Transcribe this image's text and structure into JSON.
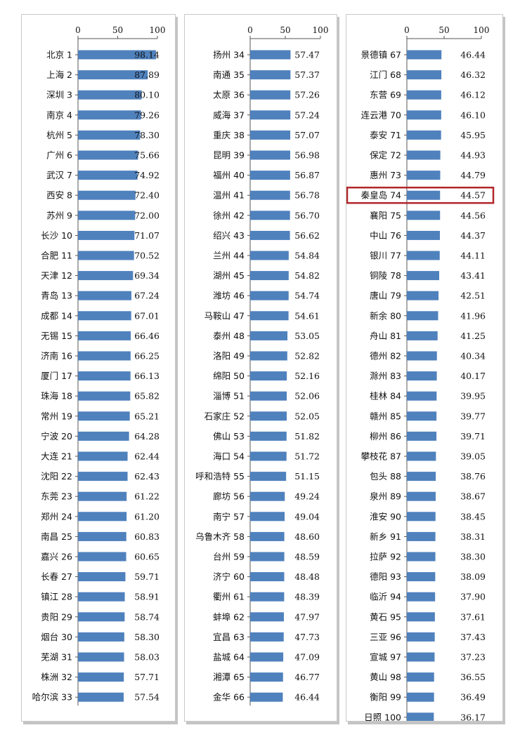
{
  "colors": {
    "bar": "#4f81bd",
    "highlight": "#b3262a"
  },
  "chart_data": [
    {
      "type": "bar",
      "orientation": "horizontal",
      "xlim": [
        0,
        100
      ],
      "xticks": [
        "0",
        "50",
        "100"
      ],
      "categories": [
        "北京 1",
        "上海 2",
        "深圳 3",
        "南京 4",
        "杭州 5",
        "广州 6",
        "武汉 7",
        "西安 8",
        "苏州 9",
        "长沙 10",
        "合肥 11",
        "天津 12",
        "青岛 13",
        "成都 14",
        "无锡 15",
        "济南 16",
        "厦门 17",
        "珠海 18",
        "常州 19",
        "宁波 20",
        "大连 21",
        "沈阳 22",
        "东莞 23",
        "郑州 24",
        "南昌 25",
        "嘉兴 26",
        "长春 27",
        "镇江 28",
        "贵阳 29",
        "烟台 30",
        "芜湖 31",
        "株洲 32",
        "哈尔滨 33"
      ],
      "values": [
        98.14,
        87.89,
        80.1,
        79.26,
        78.3,
        75.66,
        74.92,
        72.4,
        72.0,
        71.07,
        70.52,
        69.34,
        67.24,
        67.01,
        66.46,
        66.25,
        66.13,
        65.82,
        65.21,
        64.28,
        62.44,
        62.43,
        61.22,
        61.2,
        60.83,
        60.65,
        59.71,
        58.91,
        58.74,
        58.3,
        58.03,
        57.71,
        57.54
      ],
      "labels": [
        "98.14",
        "87.89",
        "80.10",
        "79.26",
        "78.30",
        "75.66",
        "74.92",
        "72.40",
        "72.00",
        "71.07",
        "70.52",
        "69.34",
        "67.24",
        "67.01",
        "66.46",
        "66.25",
        "66.13",
        "65.82",
        "65.21",
        "64.28",
        "62.44",
        "62.43",
        "61.22",
        "61.20",
        "60.83",
        "60.65",
        "59.71",
        "58.91",
        "58.74",
        "58.30",
        "58.03",
        "57.71",
        "57.54"
      ]
    },
    {
      "type": "bar",
      "orientation": "horizontal",
      "xlim": [
        0,
        100
      ],
      "xticks": [
        "0",
        "50",
        "100"
      ],
      "categories": [
        "扬州 34",
        "南通 35",
        "太原 36",
        "威海 37",
        "重庆 38",
        "昆明 39",
        "福州 40",
        "温州 41",
        "徐州 42",
        "绍兴 43",
        "兰州 44",
        "湖州 45",
        "潍坊 46",
        "马鞍山 47",
        "泰州 48",
        "洛阳 49",
        "绵阳 50",
        "淄博 51",
        "石家庄 52",
        "佛山 53",
        "海口 54",
        "呼和浩特 55",
        "廊坊 56",
        "南宁 57",
        "乌鲁木齐 58",
        "台州 59",
        "济宁 60",
        "衢州 61",
        "蚌埠 62",
        "宜昌 63",
        "盐城 64",
        "湘潭 65",
        "金华 66"
      ],
      "values": [
        57.47,
        57.37,
        57.26,
        57.24,
        57.07,
        56.98,
        56.87,
        56.78,
        56.7,
        56.62,
        54.84,
        54.82,
        54.74,
        54.61,
        53.05,
        52.82,
        52.16,
        52.06,
        52.05,
        51.82,
        51.72,
        51.15,
        49.24,
        49.04,
        48.6,
        48.59,
        48.48,
        48.39,
        47.97,
        47.73,
        47.09,
        46.77,
        46.44
      ],
      "labels": [
        "57.47",
        "57.37",
        "57.26",
        "57.24",
        "57.07",
        "56.98",
        "56.87",
        "56.78",
        "56.70",
        "56.62",
        "54.84",
        "54.82",
        "54.74",
        "54.61",
        "53.05",
        "52.82",
        "52.16",
        "52.06",
        "52.05",
        "51.82",
        "51.72",
        "51.15",
        "49.24",
        "49.04",
        "48.60",
        "48.59",
        "48.48",
        "48.39",
        "47.97",
        "47.73",
        "47.09",
        "46.77",
        "46.44"
      ]
    },
    {
      "type": "bar",
      "orientation": "horizontal",
      "xlim": [
        0,
        100
      ],
      "xticks": [
        "0",
        "50",
        "100"
      ],
      "highlight": "秦皇岛 74",
      "categories": [
        "景德镇 67",
        "江门 68",
        "东营 69",
        "连云港 70",
        "泰安 71",
        "保定 72",
        "惠州 73",
        "秦皇岛 74",
        "襄阳 75",
        "中山 76",
        "银川 77",
        "铜陵 78",
        "唐山 79",
        "新余 80",
        "舟山 81",
        "德州 82",
        "滁州 83",
        "桂林 84",
        "赣州 85",
        "柳州 86",
        "攀枝花 87",
        "包头 88",
        "泉州 89",
        "淮安 90",
        "新乡 91",
        "拉萨 92",
        "德阳 93",
        "临沂 94",
        "黄石 95",
        "三亚 96",
        "宣城 97",
        "黄山 98",
        "衡阳 99",
        "日照 100"
      ],
      "values": [
        46.44,
        46.32,
        46.12,
        46.1,
        45.95,
        44.93,
        44.79,
        44.57,
        44.56,
        44.37,
        44.11,
        43.41,
        42.51,
        41.96,
        41.25,
        40.34,
        40.17,
        39.95,
        39.77,
        39.71,
        39.05,
        38.76,
        38.67,
        38.45,
        38.31,
        38.3,
        38.09,
        37.9,
        37.61,
        37.43,
        37.23,
        36.55,
        36.49,
        36.17
      ],
      "labels": [
        "46.44",
        "46.32",
        "46.12",
        "46.10",
        "45.95",
        "44.93",
        "44.79",
        "44.57",
        "44.56",
        "44.37",
        "44.11",
        "43.41",
        "42.51",
        "41.96",
        "41.25",
        "40.34",
        "40.17",
        "39.95",
        "39.77",
        "39.71",
        "39.05",
        "38.76",
        "38.67",
        "38.45",
        "38.31",
        "38.30",
        "38.09",
        "37.90",
        "37.61",
        "37.43",
        "37.23",
        "36.55",
        "36.49",
        "36.17"
      ]
    }
  ]
}
